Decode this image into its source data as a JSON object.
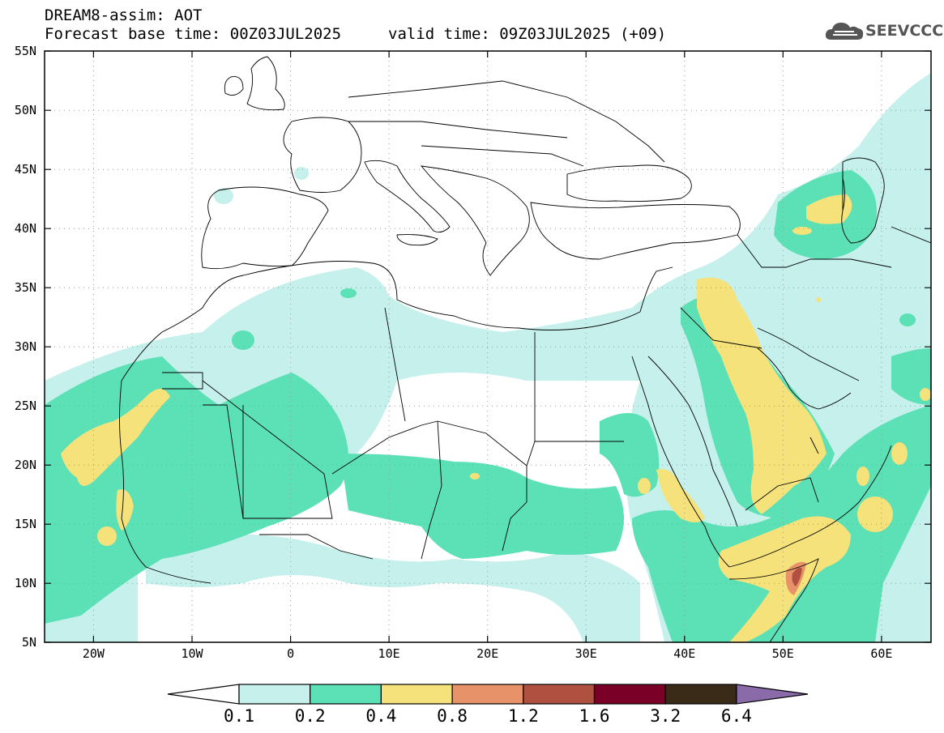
{
  "header": {
    "model_line": "DREAM8-assim: AOT",
    "base_time_line": "Forecast base time: 00Z03JUL2025",
    "valid_time_line": "valid time: 09Z03JUL2025 (+09)"
  },
  "logo": {
    "text": "SEEVCCC",
    "icon": "cloud-icon"
  },
  "map": {
    "lat_labels": [
      "55N",
      "50N",
      "45N",
      "40N",
      "35N",
      "30N",
      "25N",
      "20N",
      "15N",
      "10N",
      "5N"
    ],
    "lon_labels": [
      "20W",
      "10W",
      "0",
      "10E",
      "20E",
      "30E",
      "40E",
      "50E",
      "60E"
    ],
    "lat_range": [
      5,
      55
    ],
    "lon_range": [
      -25,
      65
    ],
    "variable": "AOT"
  },
  "colorbar": {
    "levels": [
      "0.1",
      "0.2",
      "0.4",
      "0.8",
      "1.2",
      "1.6",
      "3.2",
      "6.4"
    ],
    "colors": [
      "#ffffff",
      "#c6f0ec",
      "#5ce0b6",
      "#f5e27a",
      "#e8926a",
      "#b05040",
      "#7a0028",
      "#3a2a18",
      "#8a6aa8"
    ]
  },
  "colors": {
    "class1": "#c6f0ec",
    "class2": "#5ce0b6",
    "class3": "#f5e27a",
    "class4": "#e8926a",
    "class5": "#b05040"
  }
}
